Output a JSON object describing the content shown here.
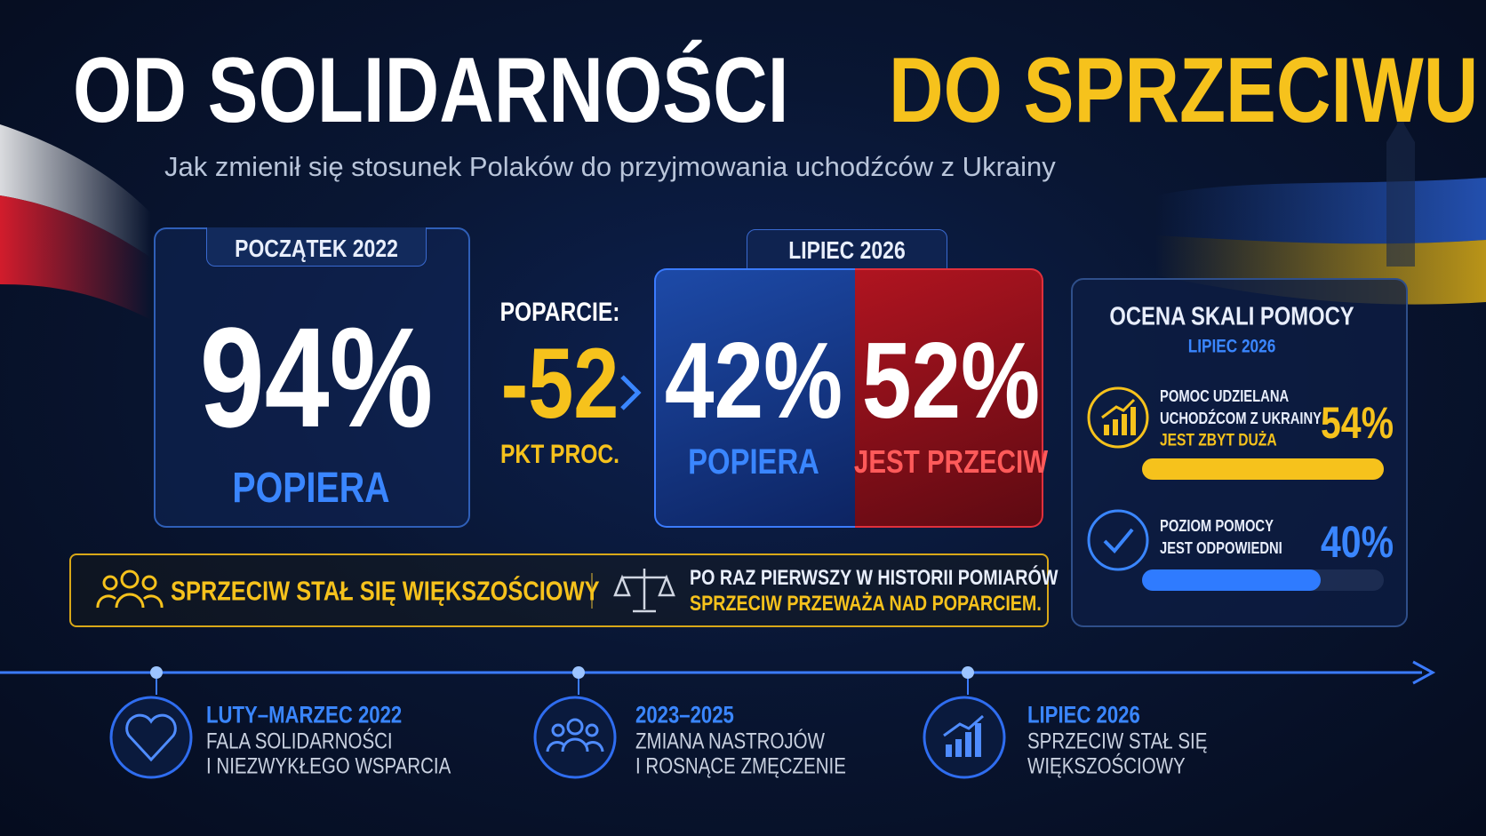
{
  "header": {
    "title_white": "OD SOLIDARNOŚCI",
    "title_yellow": "DO SPRZECIWU",
    "subtitle": "Jak zmienił się stosunek Polaków do przyjmowania uchodźców z Ukrainy"
  },
  "start": {
    "label": "POCZĄTEK 2022",
    "value": "94%",
    "caption": "POPIERA"
  },
  "change": {
    "label": "POPARCIE:",
    "value": "-52",
    "unit": "PKT PROC."
  },
  "now": {
    "label": "LIPIEC 2026",
    "support": {
      "value": "42%",
      "caption": "POPIERA"
    },
    "against": {
      "value": "52%",
      "caption": "JEST PRZECIW"
    }
  },
  "assessment": {
    "title": "OCENA SKALI POMOCY",
    "period": "LIPIEC 2026",
    "items": [
      {
        "lines": [
          "POMOC UDZIELANA",
          "UCHODŹCOM Z UKRAINY"
        ],
        "highlight": "JEST ZBYT DUŻA",
        "value": 54,
        "value_label": "54%"
      },
      {
        "lines": [
          "POZIOM POMOCY",
          "JEST ODPOWIEDNI"
        ],
        "value": 40,
        "value_label": "40%"
      }
    ]
  },
  "banner": {
    "left": "SPRZECIW STAŁ SIĘ WIĘKSZOŚCIOWY",
    "right_line1": "PO RAZ PIERWSZY W HISTORII POMIARÓW",
    "right_line2": "SPRZECIW PRZEWAŻA NAD POPARCIEM."
  },
  "timeline": [
    {
      "date": "LUTY–MARZEC 2022",
      "lines": [
        "FALA SOLIDARNOŚCI",
        "I NIEZWYKŁEGO WSPARCIA"
      ]
    },
    {
      "date": "2023–2025",
      "lines": [
        "ZMIANA NASTROJÓW",
        "I ROSNĄCE ZMĘCZENIE"
      ]
    },
    {
      "date": "LIPIEC 2026",
      "lines": [
        "SPRZECIW STAŁ SIĘ",
        "WIĘKSZOŚCIOWY"
      ]
    }
  ]
}
